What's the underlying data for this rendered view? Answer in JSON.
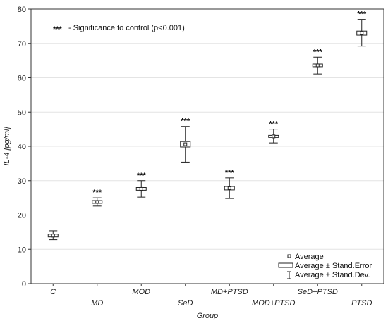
{
  "chart_data": {
    "type": "box",
    "xlabel": "Group",
    "ylabel": "IL-4 [pg/ml]",
    "ylim": [
      0,
      80
    ],
    "yticks": [
      0,
      10,
      20,
      30,
      40,
      50,
      60,
      70,
      80
    ],
    "grid": true,
    "categories": [
      "C",
      "MD",
      "MOD",
      "SeD",
      "MD+PTSD",
      "MOD+PTSD",
      "SeD+PTSD",
      "PTSD"
    ],
    "mean": [
      14.0,
      23.8,
      27.6,
      40.6,
      27.8,
      42.9,
      63.6,
      73.0
    ],
    "se_low": [
      13.6,
      23.4,
      27.2,
      39.8,
      27.3,
      42.6,
      63.2,
      72.4
    ],
    "se_high": [
      14.4,
      24.2,
      28.0,
      41.4,
      28.3,
      43.2,
      64.0,
      73.6
    ],
    "sd_low": [
      12.8,
      22.6,
      25.2,
      35.4,
      24.8,
      41.0,
      61.1,
      69.2
    ],
    "sd_high": [
      15.4,
      25.0,
      30.0,
      45.8,
      30.8,
      45.0,
      66.0,
      77.0
    ],
    "significance": [
      "",
      "***",
      "***",
      "***",
      "***",
      "***",
      "***",
      "***"
    ],
    "annotation": {
      "marker": "***",
      "text": "- Significance to control (p<0.001)"
    },
    "legend": {
      "position": "bottom-right",
      "items": [
        "Average",
        "Average ± Stand.Error",
        "Average ± Stand.Dev."
      ]
    }
  }
}
